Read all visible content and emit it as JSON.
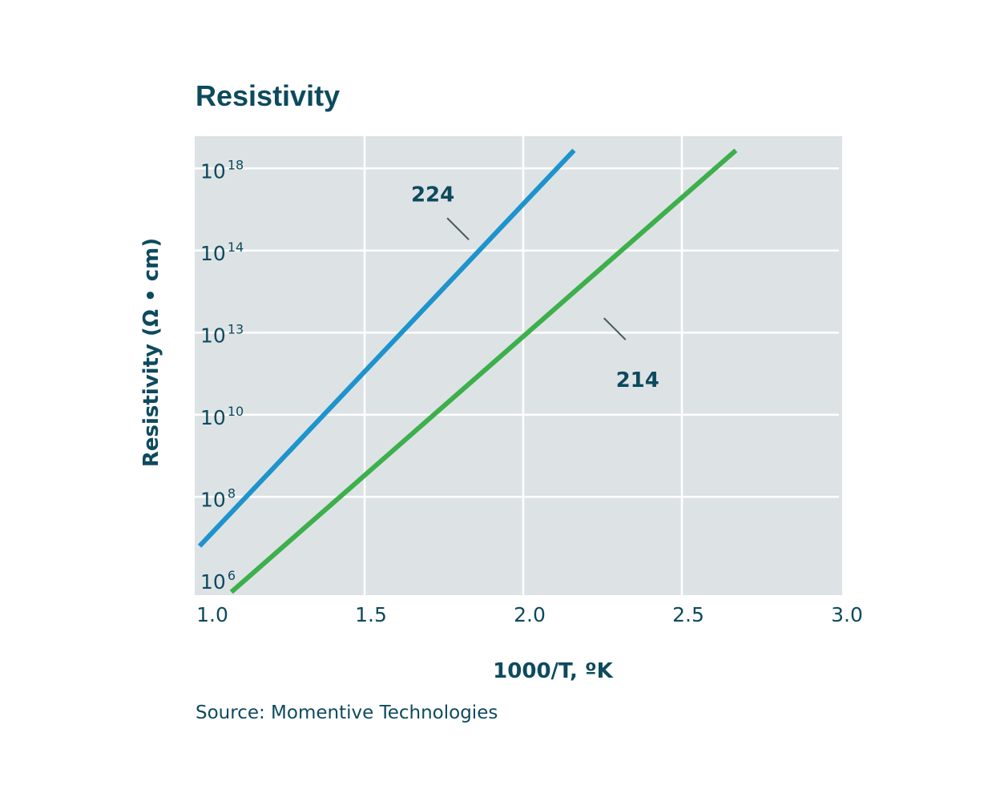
{
  "colors": {
    "plot_background": "#dde3e5",
    "grid": "#ffffff",
    "text": "#0d4a5e",
    "series_224": "#1e93cc",
    "series_214": "#3daf4b"
  },
  "chart_data": {
    "type": "line",
    "title": "Resistivity",
    "xlabel": "1000/T, ºK",
    "ylabel": "Resistivity (Ω • cm)",
    "xlim": [
      1.0,
      3.0
    ],
    "x_ticks": [
      1.0,
      1.5,
      2.0,
      2.5,
      3.0
    ],
    "x_tick_labels": [
      "1.0",
      "1.5",
      "2.0",
      "2.5",
      "3.0"
    ],
    "y_scale": "categorical-log",
    "y_ticks": [
      {
        "base": "10",
        "exp": "6",
        "value": 1000000.0
      },
      {
        "base": "10",
        "exp": "8",
        "value": 100000000.0
      },
      {
        "base": "10",
        "exp": "10",
        "value": 10000000000.0
      },
      {
        "base": "10",
        "exp": "13",
        "value": 10000000000000.0
      },
      {
        "base": "10",
        "exp": "14",
        "value": 100000000000000.0
      },
      {
        "base": "10",
        "exp": "18",
        "value": 1e+18
      }
    ],
    "grid": true,
    "series": [
      {
        "name": "224",
        "x": [
          0.98,
          2.16
        ],
        "y_level": [
          0.5,
          5.32
        ],
        "label_x": 1.72,
        "label_y_level": 4.7
      },
      {
        "name": "214",
        "x": [
          1.08,
          2.67
        ],
        "y_level": [
          -0.06,
          5.32
        ],
        "label_x": 2.32,
        "label_y_level": 2.75
      }
    ],
    "source": "Source: Momentive Technologies"
  }
}
